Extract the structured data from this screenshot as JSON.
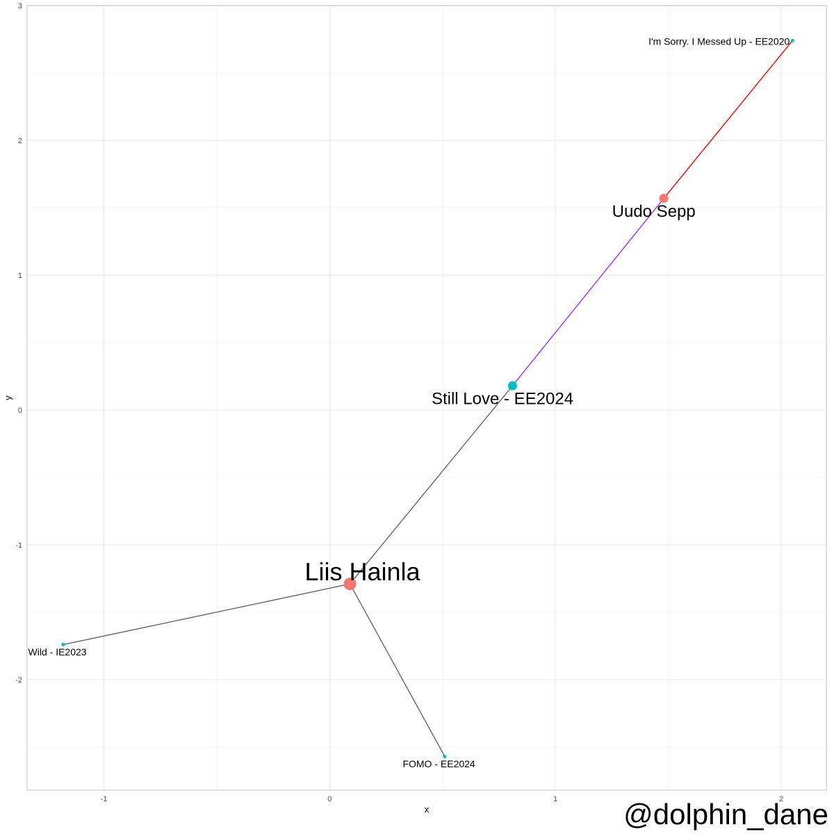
{
  "chart_data": {
    "type": "scatter",
    "title": "",
    "xlabel": "x",
    "ylabel": "y",
    "xlim": [
      -1.34,
      2.2
    ],
    "ylim": [
      -2.82,
      3.0
    ],
    "x_ticks": [
      -1,
      0,
      1,
      2
    ],
    "y_ticks": [
      -2,
      -1,
      0,
      1,
      2,
      3
    ],
    "grid": true,
    "colors": {
      "artist": "#F8766D",
      "song": "#00BFC4",
      "edge_default": "#666666",
      "edge_red": "#FF0000",
      "edge_purple": "#9B30FF",
      "grid_major": "#EBEBEB",
      "grid_minor": "#F5F5F5",
      "panel_border": "#CCCCCC"
    },
    "nodes": [
      {
        "id": "liis",
        "label": "Liis Hainla",
        "x": 0.09,
        "y": -1.29,
        "type": "artist",
        "size": "large"
      },
      {
        "id": "uudo",
        "label": "Uudo Sepp",
        "x": 1.48,
        "y": 1.57,
        "type": "artist",
        "size": "medium"
      },
      {
        "id": "still",
        "label": "Still Love - EE2024",
        "x": 0.81,
        "y": 0.18,
        "type": "song",
        "size": "medium"
      },
      {
        "id": "sorry",
        "label": "I'm Sorry. I Messed Up - EE2020",
        "x": 2.05,
        "y": 2.74,
        "type": "song",
        "size": "small"
      },
      {
        "id": "wild",
        "label": "Wild - IE2023",
        "x": -1.18,
        "y": -1.74,
        "type": "song",
        "size": "small"
      },
      {
        "id": "fomo",
        "label": "FOMO - EE2024",
        "x": 0.51,
        "y": -2.57,
        "type": "song",
        "size": "small"
      }
    ],
    "edges": [
      {
        "from": "liis",
        "to": "still",
        "color": "edge_default"
      },
      {
        "from": "liis",
        "to": "wild",
        "color": "edge_default"
      },
      {
        "from": "liis",
        "to": "fomo",
        "color": "edge_default"
      },
      {
        "from": "still",
        "to": "uudo",
        "color": "edge_purple"
      },
      {
        "from": "uudo",
        "to": "sorry",
        "color": "edge_red"
      }
    ]
  },
  "watermark": "@dolphin_dane"
}
